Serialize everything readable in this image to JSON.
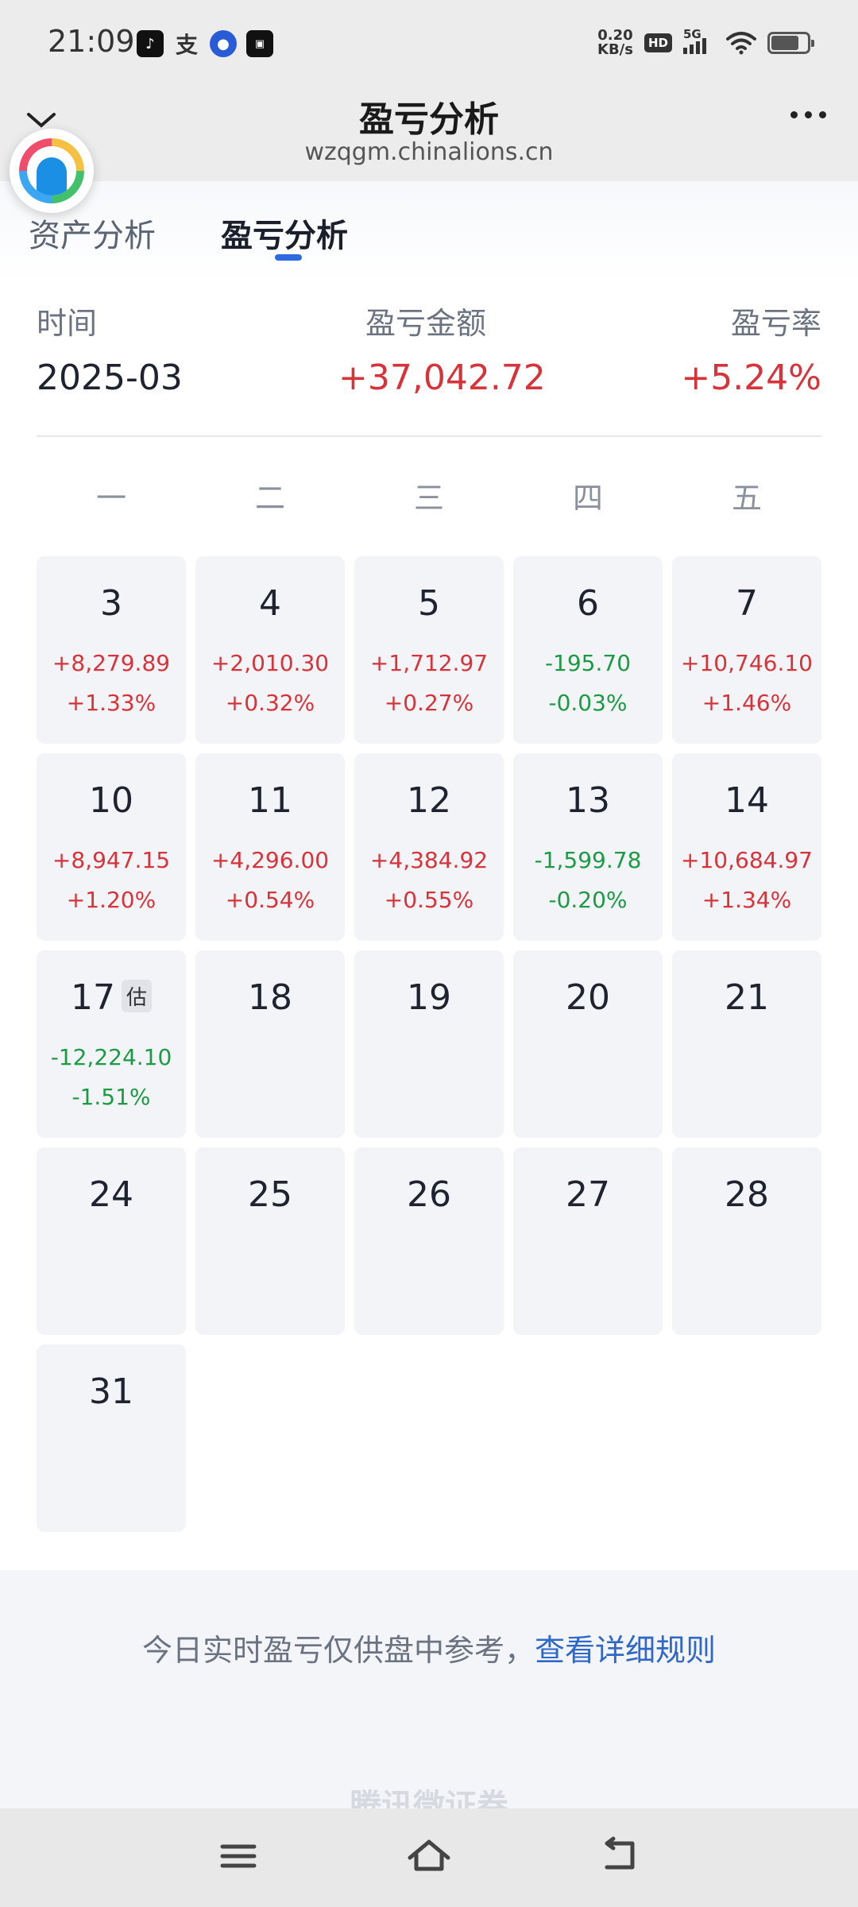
{
  "status_bar": {
    "time": "21:09",
    "app_icons": [
      "tiktok-icon",
      "alipay-icon",
      "blue-app-icon",
      "dark-app-icon"
    ],
    "alipay_glyph": "支",
    "net_speed_value": "0.20",
    "net_speed_unit": "KB/s",
    "hd": "HD",
    "network": "5G"
  },
  "title_bar": {
    "title": "盈亏分析",
    "url": "wzqgm.chinalions.cn"
  },
  "tabs": [
    {
      "label": "资产分析",
      "active": false
    },
    {
      "label": "盈亏分析",
      "active": true
    }
  ],
  "summary": {
    "time_label": "时间",
    "amount_label": "盈亏金额",
    "rate_label": "盈亏率",
    "time_value": "2025-03",
    "amount_value": "+37,042.72",
    "rate_value": "+5.24%"
  },
  "weekdays": [
    "一",
    "二",
    "三",
    "四",
    "五"
  ],
  "calendar": {
    "rows": [
      [
        {
          "day": "3",
          "amount": "+8,279.89",
          "percent": "+1.33%",
          "trend": "up"
        },
        {
          "day": "4",
          "amount": "+2,010.30",
          "percent": "+0.32%",
          "trend": "up"
        },
        {
          "day": "5",
          "amount": "+1,712.97",
          "percent": "+0.27%",
          "trend": "up"
        },
        {
          "day": "6",
          "amount": "-195.70",
          "percent": "-0.03%",
          "trend": "down"
        },
        {
          "day": "7",
          "amount": "+10,746.10",
          "percent": "+1.46%",
          "trend": "up"
        }
      ],
      [
        {
          "day": "10",
          "amount": "+8,947.15",
          "percent": "+1.20%",
          "trend": "up"
        },
        {
          "day": "11",
          "amount": "+4,296.00",
          "percent": "+0.54%",
          "trend": "up"
        },
        {
          "day": "12",
          "amount": "+4,384.92",
          "percent": "+0.55%",
          "trend": "up"
        },
        {
          "day": "13",
          "amount": "-1,599.78",
          "percent": "-0.20%",
          "trend": "down"
        },
        {
          "day": "14",
          "amount": "+10,684.97",
          "percent": "+1.34%",
          "trend": "up"
        }
      ],
      [
        {
          "day": "17",
          "amount": "-12,224.10",
          "percent": "-1.51%",
          "trend": "down",
          "badge": "估"
        },
        {
          "day": "18"
        },
        {
          "day": "19"
        },
        {
          "day": "20"
        },
        {
          "day": "21"
        }
      ],
      [
        {
          "day": "24"
        },
        {
          "day": "25"
        },
        {
          "day": "26"
        },
        {
          "day": "27"
        },
        {
          "day": "28"
        }
      ],
      [
        {
          "day": "31"
        }
      ]
    ]
  },
  "footer": {
    "note": "今日实时盈亏仅供盘中参考，",
    "link": "查看详细规则",
    "watermark": "腾讯微证券"
  },
  "colors": {
    "up": "#d6343a",
    "down": "#1d9a45",
    "accent": "#2f6be0",
    "cell_bg": "#f3f4f8"
  }
}
